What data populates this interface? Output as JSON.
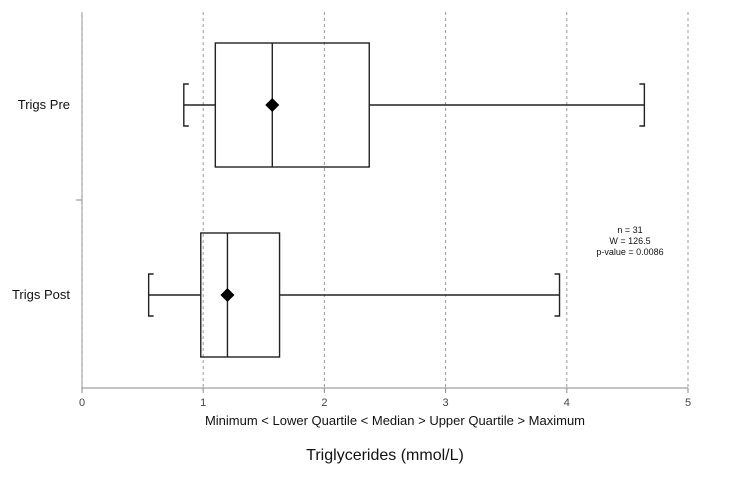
{
  "chart_data": {
    "type": "boxplot",
    "orientation": "horizontal",
    "xlabel": "Triglycerides (mmol/L)",
    "subtitle": "Minimum < Lower Quartile < Median > Upper Quartile > Maximum",
    "xlim": [
      0,
      5
    ],
    "x_ticks": [
      0,
      1,
      2,
      3,
      4,
      5
    ],
    "grid": "vertical dashed",
    "series": [
      {
        "name": "Trigs Pre",
        "min": 0.84,
        "q1": 1.1,
        "median": 1.57,
        "q3": 2.37,
        "max": 4.64,
        "mean": 1.57
      },
      {
        "name": "Trigs Post",
        "min": 0.55,
        "q1": 0.98,
        "median": 1.2,
        "q3": 1.63,
        "max": 3.94,
        "mean": 1.2
      }
    ],
    "annotation": [
      "n = 31",
      "W = 126.5",
      "p-value = 0.0086"
    ]
  }
}
